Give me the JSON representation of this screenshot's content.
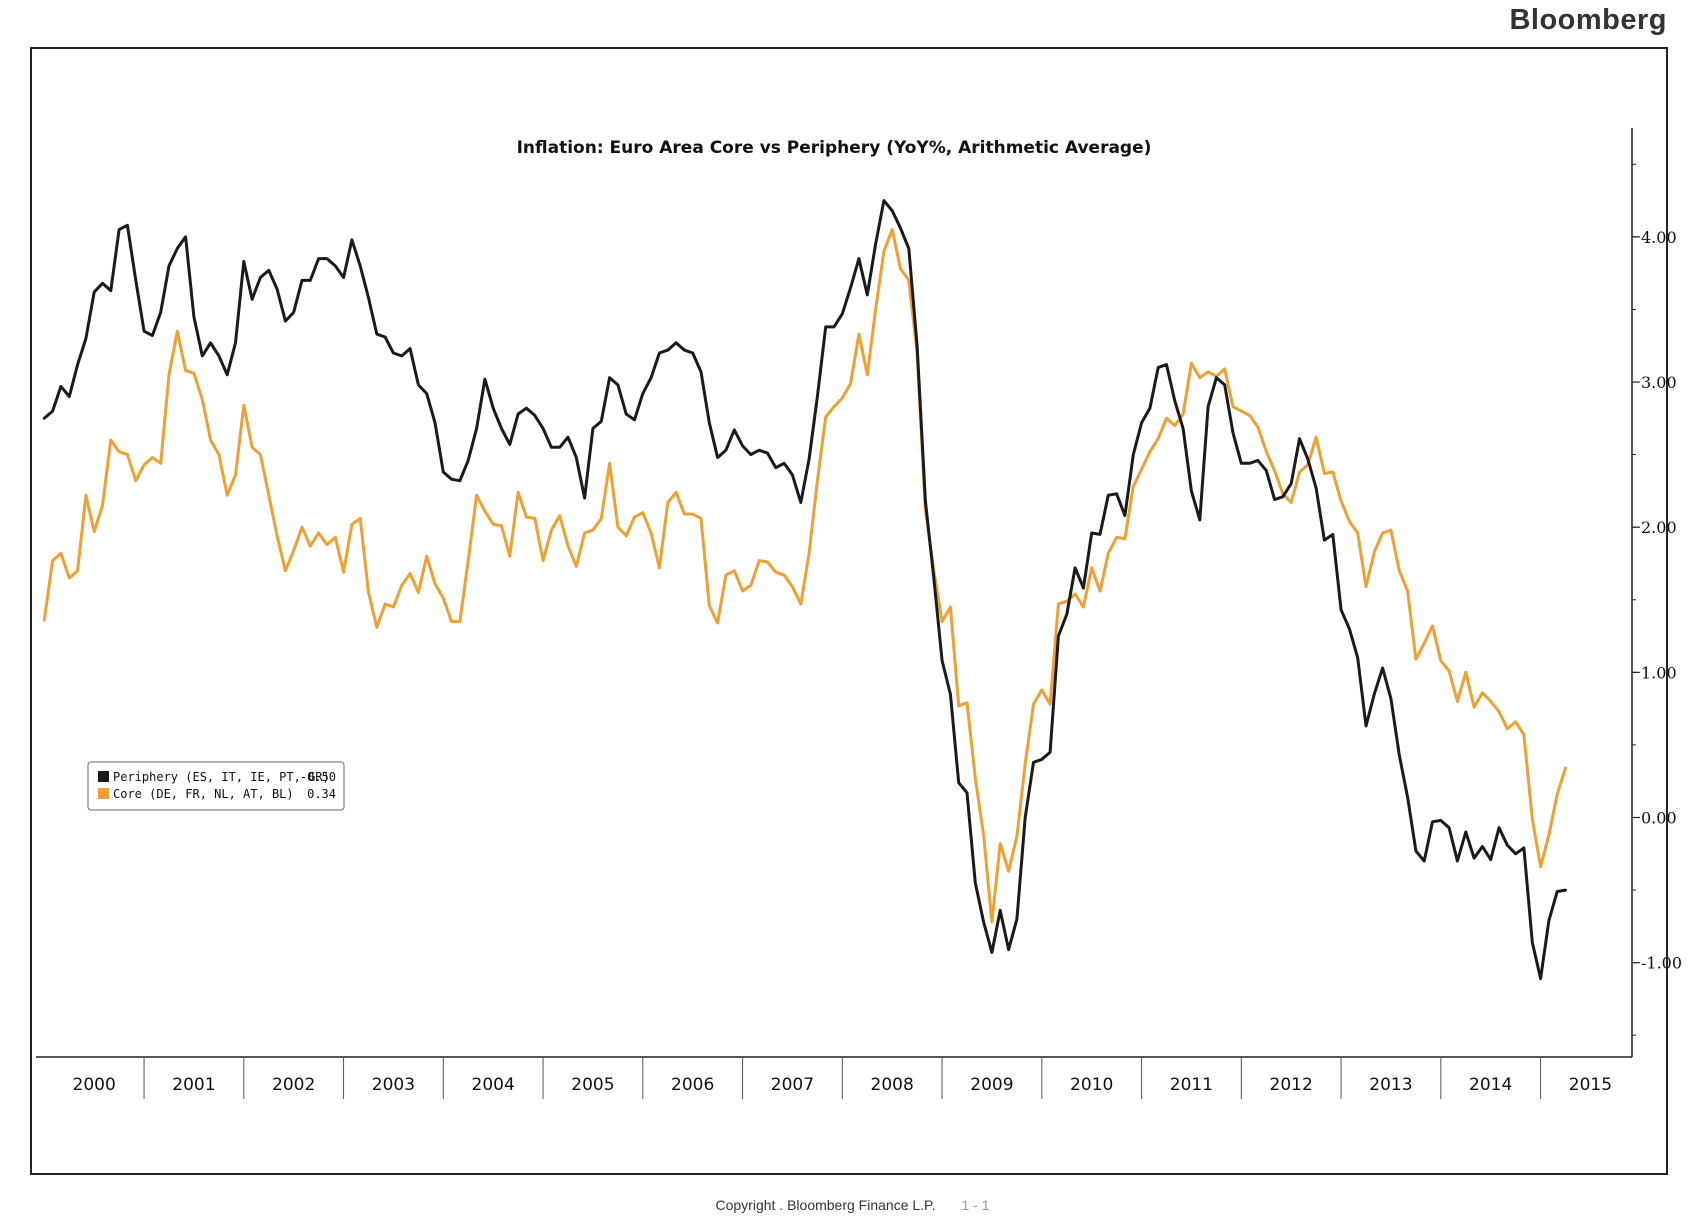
{
  "brand": "Bloomberg",
  "footer": {
    "copyright": "Copyright . Bloomberg Finance L.P.",
    "page": "1 - 1"
  },
  "chart_data": {
    "type": "line",
    "title": "Inflation: Euro Area Core vs Periphery (YoY%, Arithmetic Average)",
    "xlabel": "",
    "ylabel": "",
    "y_axis_side": "right",
    "ylim": [
      -1.65,
      4.75
    ],
    "yticks": [
      -1.0,
      0.0,
      1.0,
      2.0,
      3.0,
      4.0
    ],
    "ytick_labels": [
      "-1.00",
      "0.00",
      "1.00",
      "2.00",
      "3.00",
      "4.00"
    ],
    "x_start": "2000-01",
    "x_end": "2015-02",
    "x_range": [
      "1999-12",
      "2015-12"
    ],
    "x_tick_labels": [
      "2000",
      "2001",
      "2002",
      "2003",
      "2004",
      "2005",
      "2006",
      "2007",
      "2008",
      "2009",
      "2010",
      "2011",
      "2012",
      "2013",
      "2014",
      "2015"
    ],
    "legend_position": "middle-left",
    "grid": false,
    "series": [
      {
        "name": "Periphery (ES, IT, IE, PT, GR)",
        "last_value": "-0.50",
        "color": "#1a1a1a",
        "values": [
          2.75,
          2.8,
          2.97,
          2.9,
          3.12,
          3.3,
          3.62,
          3.68,
          3.63,
          4.05,
          4.08,
          3.7,
          3.35,
          3.32,
          3.48,
          3.8,
          3.92,
          4.0,
          3.45,
          3.18,
          3.27,
          3.18,
          3.05,
          3.27,
          3.83,
          3.57,
          3.72,
          3.77,
          3.64,
          3.42,
          3.48,
          3.7,
          3.7,
          3.85,
          3.85,
          3.8,
          3.72,
          3.98,
          3.8,
          3.58,
          3.33,
          3.31,
          3.2,
          3.18,
          3.23,
          2.98,
          2.92,
          2.72,
          2.38,
          2.33,
          2.32,
          2.46,
          2.68,
          3.02,
          2.82,
          2.68,
          2.57,
          2.78,
          2.82,
          2.77,
          2.68,
          2.55,
          2.55,
          2.62,
          2.48,
          2.2,
          2.68,
          2.73,
          3.03,
          2.98,
          2.78,
          2.74,
          2.92,
          3.03,
          3.2,
          3.22,
          3.27,
          3.22,
          3.2,
          3.07,
          2.72,
          2.48,
          2.53,
          2.67,
          2.56,
          2.5,
          2.53,
          2.51,
          2.41,
          2.44,
          2.36,
          2.17,
          2.47,
          2.9,
          3.38,
          3.38,
          3.47,
          3.65,
          3.85,
          3.6,
          3.95,
          4.25,
          4.18,
          4.06,
          3.92,
          3.25,
          2.18,
          1.65,
          1.08,
          0.85,
          0.24,
          0.17,
          -0.45,
          -0.72,
          -0.93,
          -0.64,
          -0.91,
          -0.7,
          0.0,
          0.38,
          0.4,
          0.45,
          1.25,
          1.4,
          1.72,
          1.58,
          1.96,
          1.95,
          2.22,
          2.23,
          2.08,
          2.5,
          2.72,
          2.82,
          3.1,
          3.12,
          2.87,
          2.68,
          2.25,
          2.05,
          2.83,
          3.03,
          2.98,
          2.65,
          2.44,
          2.44,
          2.46,
          2.39,
          2.19,
          2.21,
          2.3,
          2.61,
          2.47,
          2.27,
          1.91,
          1.95,
          1.43,
          1.3,
          1.1,
          0.63,
          0.85,
          1.03,
          0.82,
          0.43,
          0.14,
          -0.23,
          -0.3,
          -0.03,
          -0.02,
          -0.07,
          -0.3,
          -0.1,
          -0.28,
          -0.2,
          -0.29,
          -0.07,
          -0.19,
          -0.25,
          -0.21,
          -0.86,
          -1.11,
          -0.71,
          -0.51,
          -0.5
        ]
      },
      {
        "name": "Core (DE, FR, NL, AT, BL)",
        "last_value": "0.34",
        "color": "#f0a030",
        "values": [
          1.36,
          1.77,
          1.82,
          1.65,
          1.7,
          2.22,
          1.97,
          2.15,
          2.6,
          2.52,
          2.5,
          2.32,
          2.43,
          2.48,
          2.44,
          3.05,
          3.35,
          3.08,
          3.06,
          2.88,
          2.6,
          2.5,
          2.22,
          2.36,
          2.84,
          2.55,
          2.5,
          2.22,
          1.94,
          1.7,
          1.84,
          2.0,
          1.87,
          1.96,
          1.88,
          1.93,
          1.69,
          2.02,
          2.06,
          1.55,
          1.31,
          1.47,
          1.45,
          1.6,
          1.68,
          1.55,
          1.8,
          1.61,
          1.51,
          1.35,
          1.35,
          1.77,
          2.22,
          2.11,
          2.02,
          2.01,
          1.8,
          2.24,
          2.07,
          2.06,
          1.77,
          1.98,
          2.08,
          1.87,
          1.73,
          1.96,
          1.98,
          2.06,
          2.44,
          2.0,
          1.94,
          2.07,
          2.1,
          1.96,
          1.72,
          2.17,
          2.24,
          2.09,
          2.09,
          2.06,
          1.46,
          1.34,
          1.67,
          1.7,
          1.56,
          1.6,
          1.77,
          1.76,
          1.69,
          1.67,
          1.59,
          1.47,
          1.82,
          2.32,
          2.76,
          2.83,
          2.89,
          2.99,
          3.33,
          3.05,
          3.5,
          3.9,
          4.05,
          3.78,
          3.7,
          3.2,
          2.12,
          1.7,
          1.35,
          1.45,
          0.77,
          0.79,
          0.27,
          -0.12,
          -0.72,
          -0.18,
          -0.37,
          -0.13,
          0.37,
          0.78,
          0.88,
          0.78,
          1.47,
          1.49,
          1.54,
          1.45,
          1.72,
          1.56,
          1.82,
          1.93,
          1.92,
          2.28,
          2.4,
          2.52,
          2.61,
          2.75,
          2.7,
          2.78,
          3.13,
          3.03,
          3.07,
          3.04,
          3.09,
          2.83,
          2.8,
          2.77,
          2.69,
          2.52,
          2.39,
          2.23,
          2.17,
          2.38,
          2.43,
          2.62,
          2.37,
          2.38,
          2.18,
          2.04,
          1.96,
          1.59,
          1.83,
          1.96,
          1.98,
          1.7,
          1.56,
          1.09,
          1.2,
          1.32,
          1.08,
          1.01,
          0.8,
          1.0,
          0.76,
          0.86,
          0.8,
          0.73,
          0.61,
          0.66,
          0.57,
          -0.01,
          -0.34,
          -0.12,
          0.16,
          0.34
        ]
      }
    ]
  }
}
